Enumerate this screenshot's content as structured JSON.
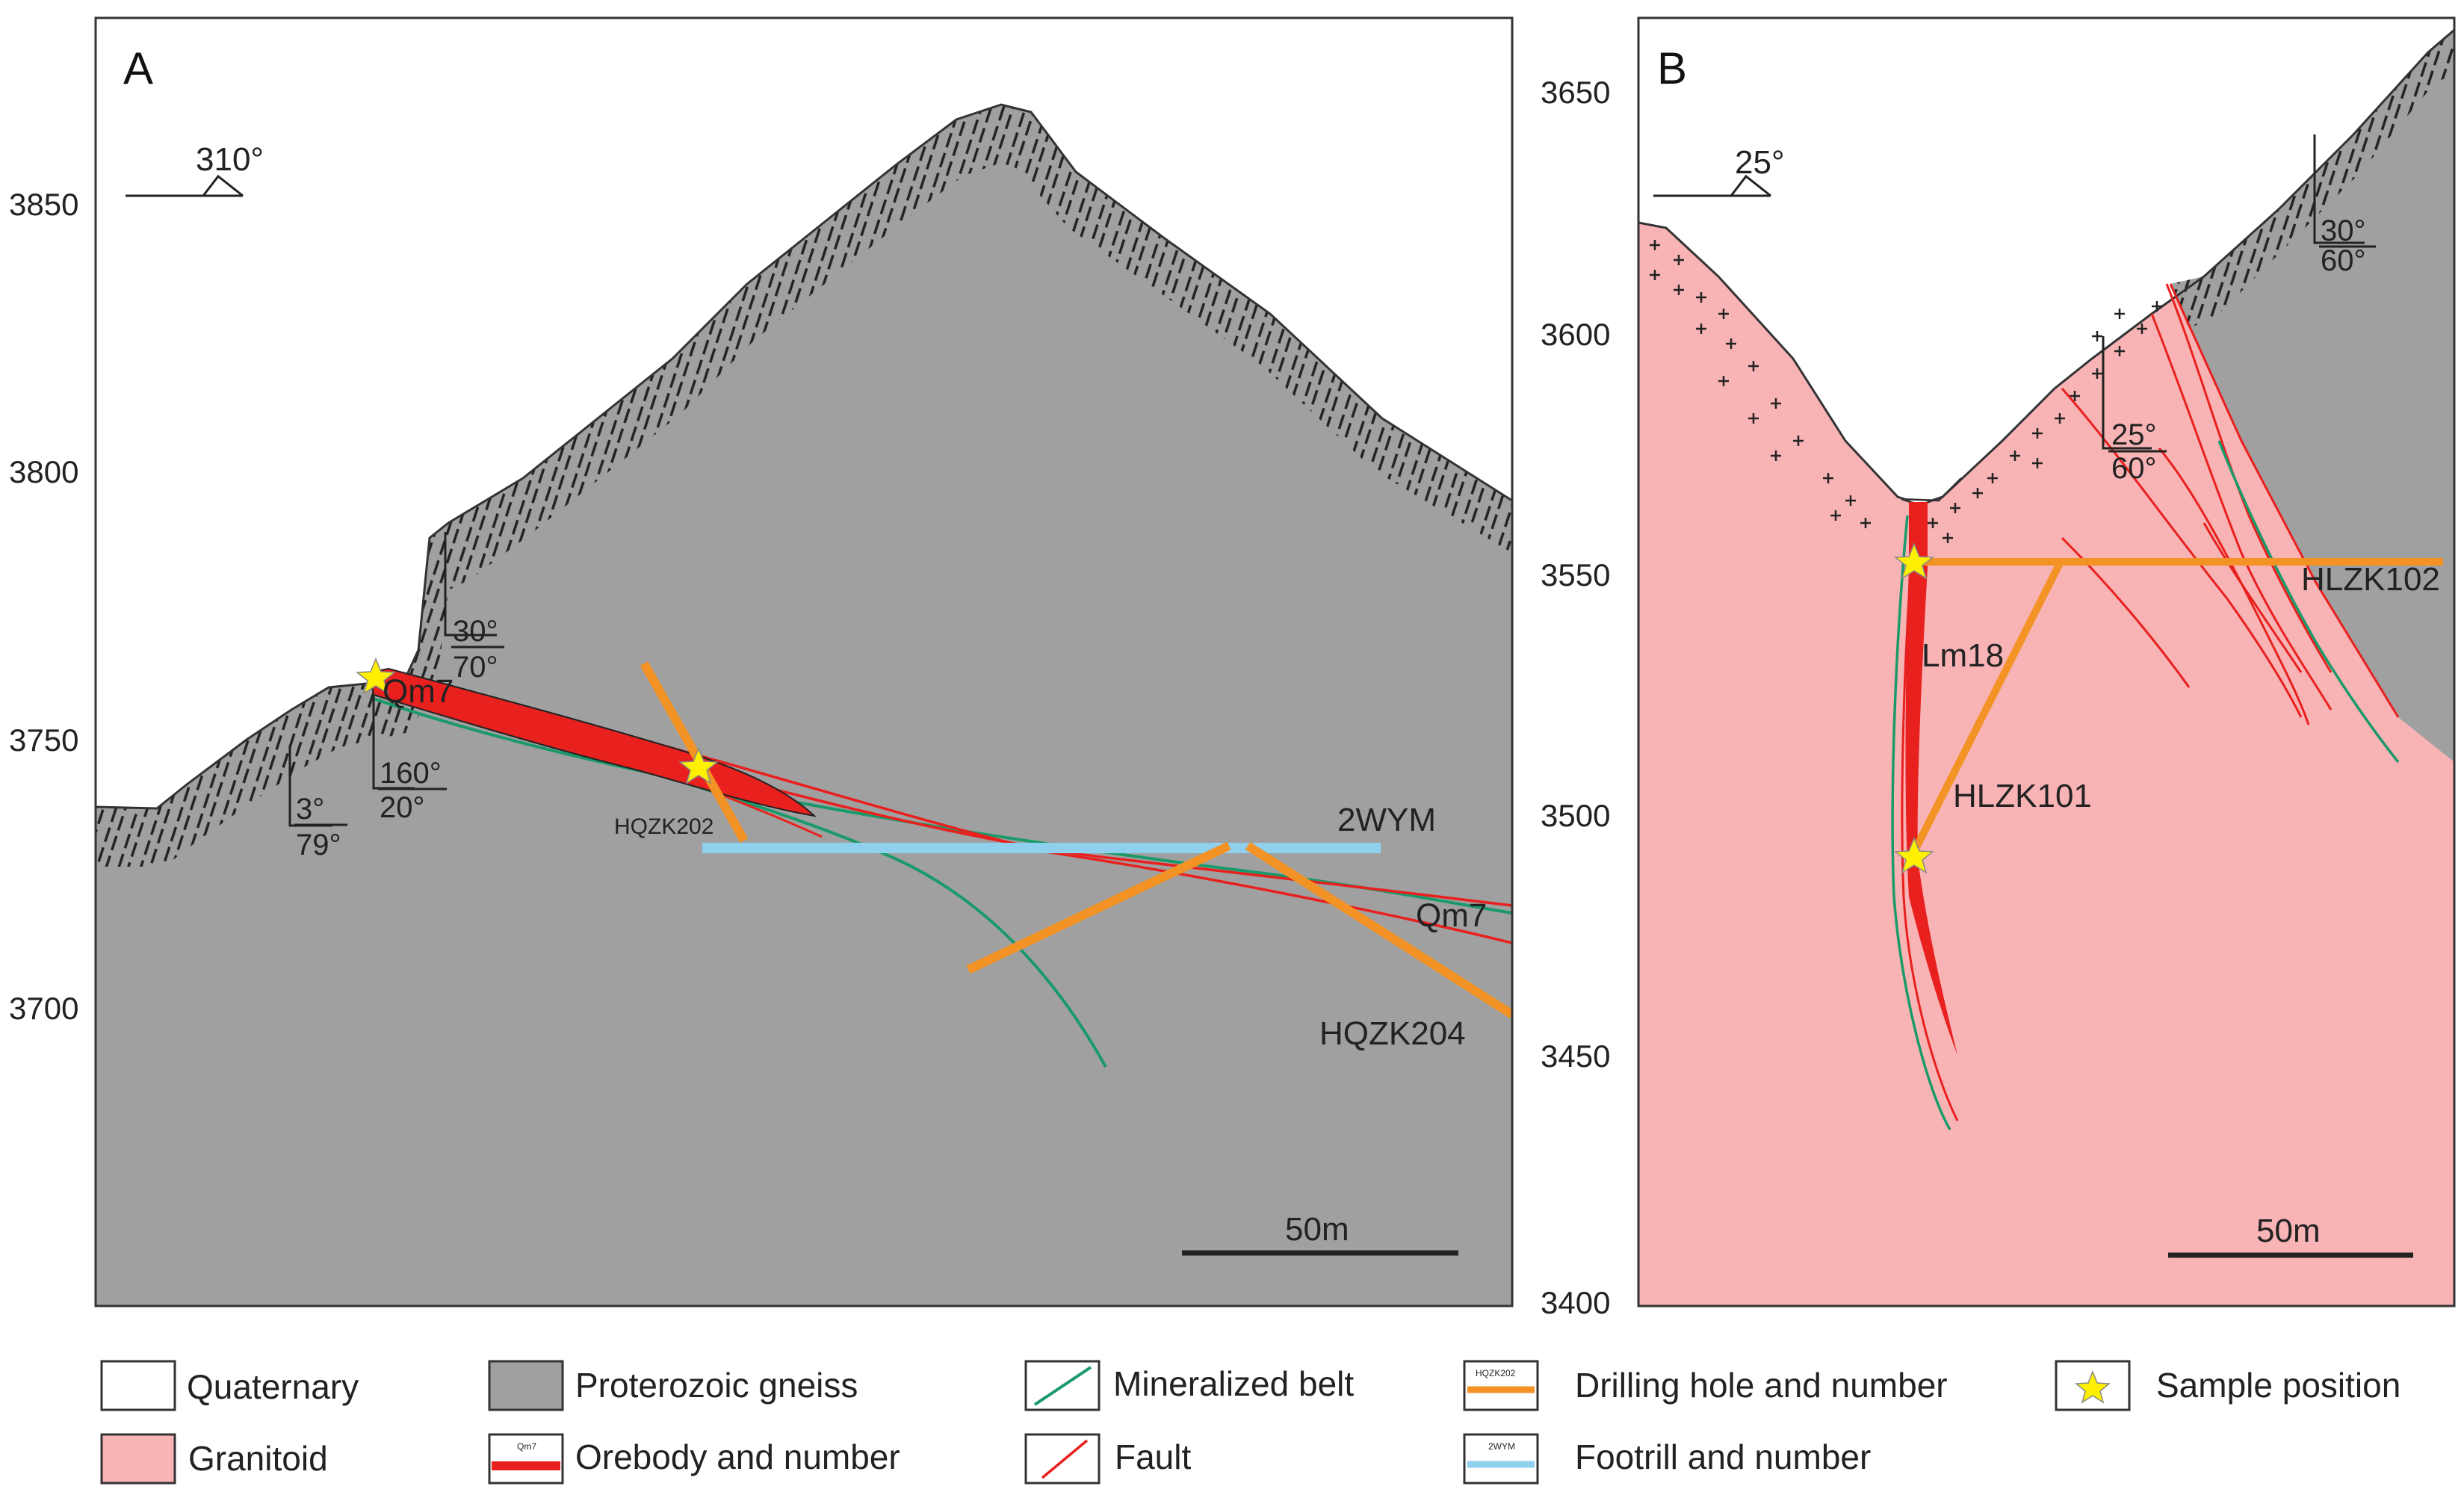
{
  "panel_a": {
    "label": "A",
    "orientation": "310°",
    "y_ticks": [
      "3850",
      "3800",
      "3750",
      "3700"
    ],
    "orebody": "Qm7",
    "orebody_right": "Qm7",
    "drill_holes": [
      "HQZK202",
      "HQZK204"
    ],
    "footrill": "2WYM",
    "attitudes": [
      {
        "a": "30°",
        "b": "70°"
      },
      {
        "a": "160°",
        "b": "20°"
      },
      {
        "a": "3°",
        "b": "79°"
      }
    ],
    "scale": "50m"
  },
  "panel_b": {
    "label": "B",
    "orientation": "25°",
    "y_ticks": [
      "3650",
      "3600",
      "3550",
      "3500",
      "3450",
      "3400"
    ],
    "orebody": "Lm18",
    "drill_holes": [
      "HLZK101",
      "HLZK102"
    ],
    "attitudes": [
      {
        "a": "30°",
        "b": "60°"
      },
      {
        "a": "25°",
        "b": "60°"
      }
    ],
    "scale": "50m"
  },
  "legend": {
    "quaternary": "Quaternary",
    "gneiss": "Proterozoic gneiss",
    "mineralized": "Mineralized belt",
    "drilling": "Drilling hole and number",
    "drilling_icon": "HQZK202",
    "sample": "Sample position",
    "granitoid": "Granitoid",
    "orebody": "Orebody and number",
    "orebody_icon": "Qm7",
    "fault": "Fault",
    "footrill": "Footrill and number",
    "footrill_icon": "2WYM"
  },
  "colors": {
    "gneiss": "#a0a0a0",
    "granitoid": "#f8b3b5",
    "orebody": "#e8201e",
    "fault": "#e8201e",
    "mineralized": "#1a9a6a",
    "drill": "#f39325",
    "footrill": "#8ed0ee",
    "star": "#ffef00"
  }
}
